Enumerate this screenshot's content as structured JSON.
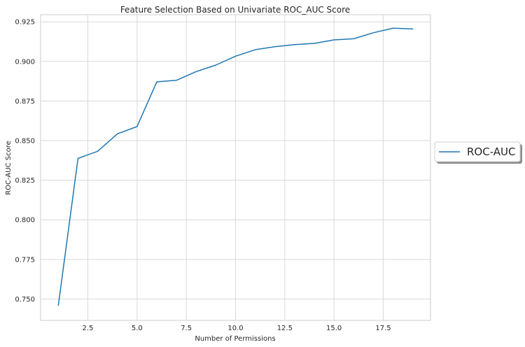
{
  "chart_data": {
    "type": "line",
    "title": "Feature Selection Based on Univariate ROC_AUC Score",
    "xlabel": "Number of Permissions",
    "ylabel": "ROC-AUC Score",
    "xlim": [
      0.1,
      19.9
    ],
    "ylim": [
      0.7365,
      0.9295
    ],
    "x_ticks": [
      2.5,
      5.0,
      7.5,
      10.0,
      12.5,
      15.0,
      17.5
    ],
    "x_tick_labels": [
      "2.5",
      "5.0",
      "7.5",
      "10.0",
      "12.5",
      "15.0",
      "17.5"
    ],
    "y_ticks": [
      0.75,
      0.775,
      0.8,
      0.825,
      0.85,
      0.875,
      0.9,
      0.925
    ],
    "y_tick_labels": [
      "0.750",
      "0.775",
      "0.800",
      "0.825",
      "0.850",
      "0.875",
      "0.900",
      "0.925"
    ],
    "grid": true,
    "legend_position": "outside-right",
    "series": [
      {
        "name": "ROC-AUC",
        "color": "#1f77b4",
        "x": [
          1,
          2,
          3,
          4,
          5,
          6,
          7,
          8,
          9,
          10,
          11,
          12,
          13,
          14,
          15,
          16,
          17,
          18,
          19
        ],
        "y": [
          0.746,
          0.8388,
          0.8433,
          0.8543,
          0.8589,
          0.8871,
          0.8881,
          0.8936,
          0.8977,
          0.9033,
          0.9074,
          0.9093,
          0.9106,
          0.9114,
          0.9136,
          0.9143,
          0.9181,
          0.921,
          0.9205
        ]
      }
    ]
  }
}
